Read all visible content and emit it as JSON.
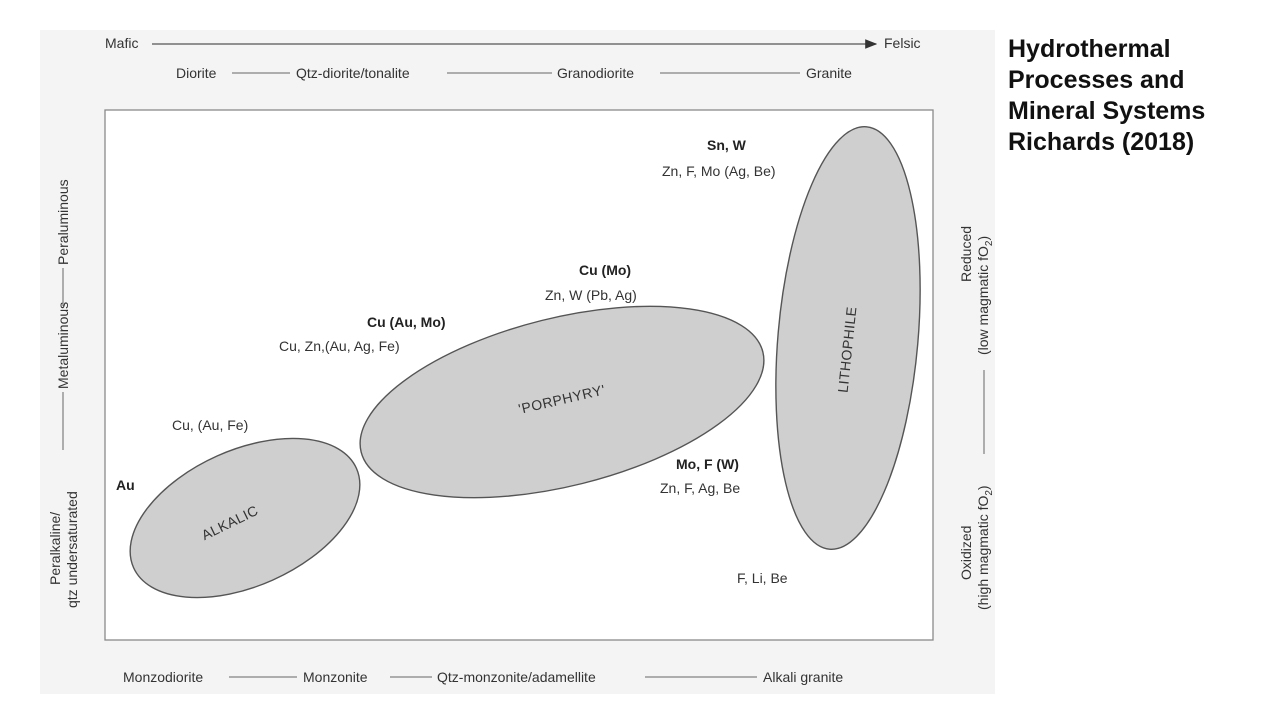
{
  "title": {
    "lines": [
      "Hydrothermal",
      "Processes and",
      "Mineral Systems",
      "Richards (2018)"
    ]
  },
  "diagram": {
    "top_axis": {
      "left": "Mafic",
      "right": "Felsic"
    },
    "top_rocks": [
      "Diorite",
      "Qtz-diorite/tonalite",
      "Granodiorite",
      "Granite"
    ],
    "bottom_rocks": [
      "Monzodiorite",
      "Monzonite",
      "Qtz-monzonite/adamellite",
      "Alkali granite"
    ],
    "left_axis": {
      "peraluminous": "Peraluminous",
      "metaluminous": "Metaluminous",
      "peralkaline_1": "Peralkaline/",
      "peralkaline_2": "qtz undersaturated"
    },
    "right_axis": {
      "reduced_1": "Reduced",
      "reduced_2": "(low magmatic fO",
      "reduced_2_close": ")",
      "oxidized_1": "Oxidized",
      "oxidized_2": "(high magmatic fO",
      "oxidized_2_close": ")",
      "subscript": "2"
    },
    "ellipses": {
      "alkalic": "ALKALIC",
      "porphyry": "'PORPHYRY'",
      "lithophile": "LITHOPHILE"
    },
    "annotations": {
      "au": "Au",
      "cu_au_fe": "Cu, (Au, Fe)",
      "cu_au_mo": "Cu (Au, Mo)",
      "cu_zn_au_ag_fe": "Cu, Zn,(Au, Ag, Fe)",
      "cu_mo": "Cu (Mo)",
      "zn_w_pb_ag": "Zn, W (Pb, Ag)",
      "sn_w": "Sn, W",
      "zn_f_mo_ag_be": "Zn, F, Mo (Ag, Be)",
      "mo_f_w": "Mo, F (W)",
      "zn_f_ag_be": "Zn, F, Ag, Be",
      "f_li_be": "F, Li, Be"
    },
    "colors": {
      "ellipse_fill": "#cfcfcf",
      "ellipse_stroke": "#555555",
      "frame": "#8a8a8a"
    }
  }
}
